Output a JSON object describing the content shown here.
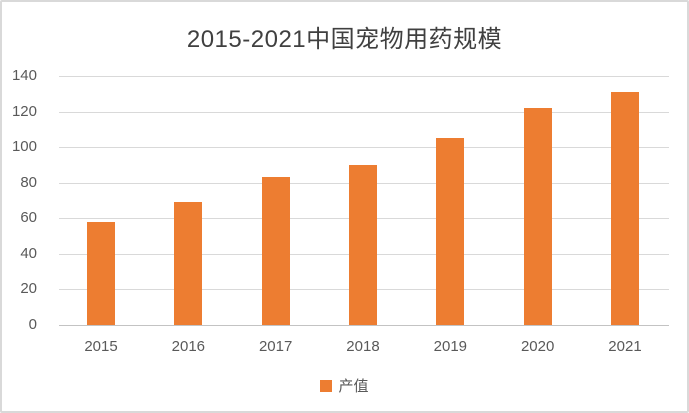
{
  "chart_data": {
    "type": "bar",
    "title": "2015-2021中国宠物用药规模",
    "categories": [
      "2015",
      "2016",
      "2017",
      "2018",
      "2019",
      "2020",
      "2021"
    ],
    "series": [
      {
        "name": "产值",
        "values": [
          58,
          69,
          83,
          90,
          105,
          122,
          131
        ]
      }
    ],
    "xlabel": "",
    "ylabel": "",
    "ylim": [
      0,
      140
    ],
    "ytick_step": 20,
    "yticks": [
      0,
      20,
      40,
      60,
      80,
      100,
      120,
      140
    ],
    "grid": true,
    "legend_position": "bottom",
    "colors": {
      "bar": "#ED7D31",
      "gridline": "#D9D9D9",
      "axis_line": "#C3C3C3",
      "tick_label": "#595959",
      "title": "#404040",
      "frame_border": "#D9D9D9"
    }
  }
}
